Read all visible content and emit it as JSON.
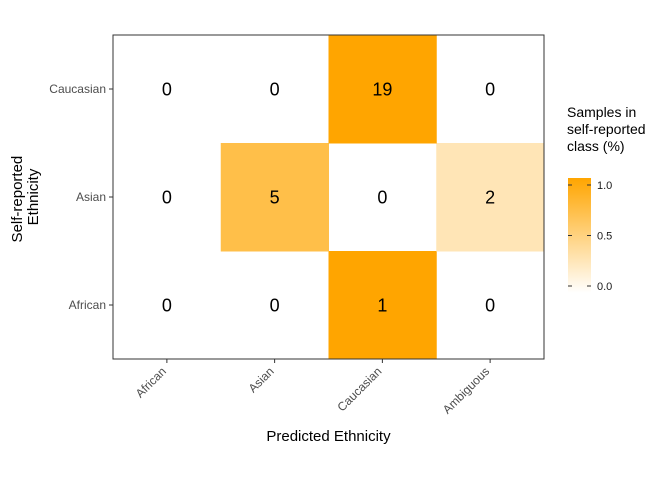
{
  "chart_data": {
    "type": "heatmap",
    "xlabel": "Predicted Ethnicity",
    "ylabel": [
      "Self-reported",
      "Ethnicity"
    ],
    "x_categories": [
      "African",
      "Asian",
      "Caucasian",
      "Ambiguous"
    ],
    "y_categories": [
      "African",
      "Asian",
      "Caucasian"
    ],
    "counts": [
      [
        0,
        0,
        1,
        0
      ],
      [
        0,
        5,
        0,
        2
      ],
      [
        0,
        0,
        19,
        0
      ]
    ],
    "fractions": [
      [
        0,
        0,
        1.0,
        0
      ],
      [
        0,
        0.714,
        0,
        0.286
      ],
      [
        0,
        0,
        1.0,
        0
      ]
    ],
    "legend": {
      "title": [
        "Samples in",
        "self-reported",
        "class (%)"
      ],
      "ticks": [
        "0.0",
        "0.5",
        "1.0"
      ],
      "tick_values": [
        0,
        0.5,
        1.0
      ],
      "range": [
        0,
        1
      ]
    },
    "colors": {
      "low": "#ffffff",
      "high": "#ffa500",
      "border": "#333333"
    }
  }
}
